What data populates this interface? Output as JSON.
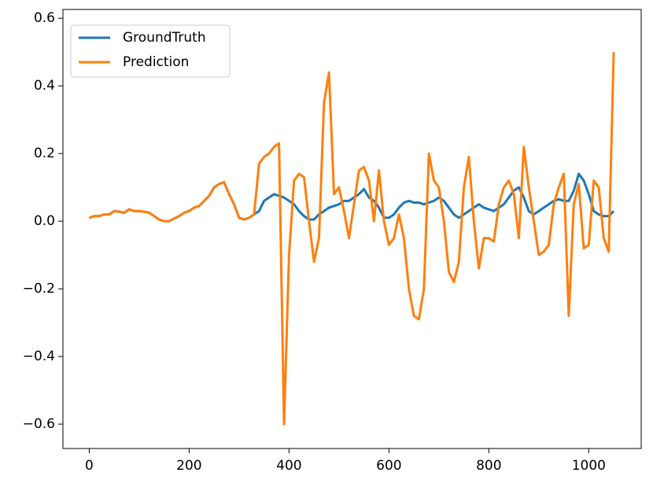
{
  "chart_data": {
    "type": "line",
    "x": [
      0,
      10,
      20,
      30,
      40,
      50,
      60,
      70,
      80,
      90,
      100,
      110,
      120,
      130,
      140,
      150,
      160,
      170,
      180,
      190,
      200,
      210,
      220,
      230,
      240,
      250,
      260,
      270,
      280,
      290,
      300,
      310,
      320,
      330,
      340,
      350,
      360,
      370,
      380,
      390,
      400,
      410,
      420,
      430,
      440,
      450,
      460,
      470,
      480,
      490,
      500,
      510,
      520,
      530,
      540,
      550,
      560,
      570,
      580,
      590,
      600,
      610,
      620,
      630,
      640,
      650,
      660,
      670,
      680,
      690,
      700,
      710,
      720,
      730,
      740,
      750,
      760,
      770,
      780,
      790,
      800,
      810,
      820,
      830,
      840,
      850,
      860,
      870,
      880,
      890,
      900,
      910,
      920,
      930,
      940,
      950,
      960,
      970,
      980,
      990,
      1000,
      1010,
      1020,
      1030,
      1040,
      1050
    ],
    "series": [
      {
        "name": "GroundTruth",
        "color": "#1f77b4",
        "values": [
          0.01,
          0.015,
          0.015,
          0.02,
          0.02,
          0.03,
          0.028,
          0.025,
          0.035,
          0.03,
          0.03,
          0.028,
          0.025,
          0.015,
          0.005,
          0.0,
          0.0,
          0.008,
          0.015,
          0.025,
          0.03,
          0.04,
          0.045,
          0.06,
          0.075,
          0.1,
          0.11,
          0.115,
          0.08,
          0.05,
          0.01,
          0.005,
          0.01,
          0.02,
          0.03,
          0.06,
          0.07,
          0.08,
          0.075,
          0.07,
          0.06,
          0.05,
          0.03,
          0.015,
          0.005,
          0.005,
          0.02,
          0.03,
          0.04,
          0.045,
          0.05,
          0.06,
          0.06,
          0.07,
          0.08,
          0.095,
          0.07,
          0.06,
          0.04,
          0.01,
          0.01,
          0.02,
          0.04,
          0.055,
          0.06,
          0.055,
          0.055,
          0.05,
          0.055,
          0.06,
          0.07,
          0.06,
          0.04,
          0.02,
          0.01,
          0.02,
          0.03,
          0.04,
          0.05,
          0.04,
          0.035,
          0.03,
          0.04,
          0.05,
          0.07,
          0.09,
          0.1,
          0.07,
          0.03,
          0.02,
          0.03,
          0.04,
          0.05,
          0.06,
          0.065,
          0.06,
          0.06,
          0.09,
          0.14,
          0.12,
          0.08,
          0.03,
          0.02,
          0.015,
          0.015,
          0.03
        ]
      },
      {
        "name": "Prediction",
        "color": "#ff7f0e",
        "values": [
          0.01,
          0.015,
          0.015,
          0.02,
          0.02,
          0.03,
          0.028,
          0.025,
          0.035,
          0.03,
          0.03,
          0.028,
          0.025,
          0.015,
          0.005,
          0.0,
          0.0,
          0.008,
          0.015,
          0.025,
          0.03,
          0.04,
          0.045,
          0.06,
          0.075,
          0.1,
          0.11,
          0.115,
          0.08,
          0.05,
          0.01,
          0.005,
          0.01,
          0.02,
          0.17,
          0.19,
          0.2,
          0.22,
          0.23,
          -0.6,
          -0.1,
          0.12,
          0.14,
          0.13,
          0.0,
          -0.12,
          -0.05,
          0.35,
          0.44,
          0.08,
          0.1,
          0.03,
          -0.05,
          0.05,
          0.15,
          0.16,
          0.12,
          0.0,
          0.15,
          0.0,
          -0.07,
          -0.05,
          0.02,
          -0.05,
          -0.2,
          -0.28,
          -0.29,
          -0.2,
          0.2,
          0.12,
          0.1,
          0.0,
          -0.15,
          -0.18,
          -0.12,
          0.1,
          0.19,
          0.0,
          -0.14,
          -0.05,
          -0.05,
          -0.06,
          0.05,
          0.1,
          0.12,
          0.08,
          -0.05,
          0.22,
          0.1,
          0.0,
          -0.1,
          -0.09,
          -0.07,
          0.05,
          0.1,
          0.14,
          -0.28,
          0.05,
          0.11,
          -0.08,
          -0.07,
          0.12,
          0.1,
          -0.05,
          -0.09,
          0.5
        ]
      }
    ],
    "xlim": [
      -52.6,
      1105
    ],
    "ylim": [
      -0.672,
      0.626
    ],
    "xticks": [
      0,
      200,
      400,
      600,
      800,
      1000
    ],
    "yticks": [
      {
        "value": -0.6,
        "label": "−0.6"
      },
      {
        "value": -0.4,
        "label": "−0.4"
      },
      {
        "value": -0.2,
        "label": "−0.2"
      },
      {
        "value": 0,
        "label": "0.0"
      },
      0.2,
      0.4,
      0.6
    ],
    "legend": "upper left"
  }
}
